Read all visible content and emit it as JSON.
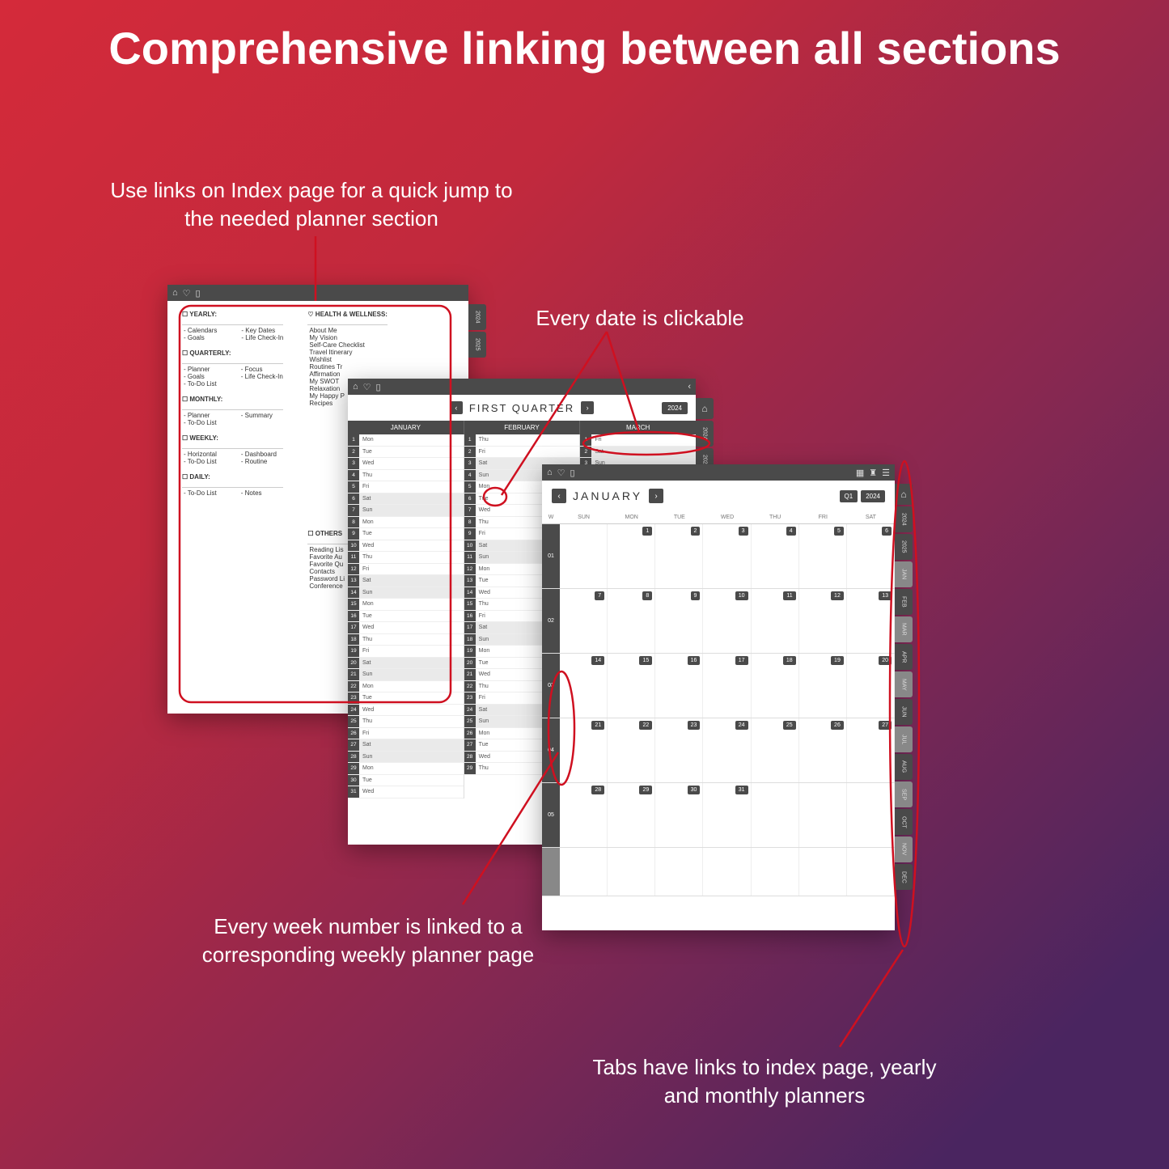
{
  "title": "Comprehensive linking between all sections",
  "callouts": {
    "c1": "Use links on Index page for a quick jump to the needed planner section",
    "c2": "Every date is clickable",
    "c3": "Every week number is linked to a corresponding weekly planner page",
    "c4": "Tabs have links to index page, yearly and monthly planners"
  },
  "index": {
    "sections": [
      {
        "h": "☐ YEARLY:",
        "items": [
          "- Calendars",
          "- Goals"
        ],
        "items2": [
          "- Key Dates",
          "- Life Check-In"
        ]
      },
      {
        "h": "☐ QUARTERLY:",
        "items": [
          "- Planner",
          "- Goals",
          "- To-Do List"
        ],
        "items2": [
          "- Focus",
          "- Life Check-In"
        ]
      },
      {
        "h": "☐ MONTHLY:",
        "items": [
          "- Planner",
          "- To-Do List"
        ],
        "items2": [
          "- Summary"
        ]
      },
      {
        "h": "☐ WEEKLY:",
        "items": [
          "- Horizontal",
          "- To-Do List"
        ],
        "items2": [
          "- Dashboard",
          "- Routine"
        ]
      },
      {
        "h": "☐ DAILY:",
        "items": [
          "- To-Do List"
        ],
        "items2": [
          "- Notes"
        ]
      }
    ],
    "health_h": "♡ HEALTH & WELLNESS:",
    "health": [
      "About Me",
      "My Vision",
      "Self-Care Checklist",
      "Travel Itinerary",
      "Wishlist",
      "Routines Tr",
      "Affirmation",
      "My SWOT",
      "Relaxation",
      "My Happy P",
      "Recipes"
    ],
    "others_h": "☐ OTHERS",
    "others": [
      "Reading Lis",
      "Favorite Au",
      "Favorite Qu",
      "Contacts",
      "Password Li",
      "Conference"
    ]
  },
  "quarter": {
    "title": "FIRST QUARTER",
    "year": "2024",
    "months": [
      "JANUARY",
      "FEBRUARY",
      "MARCH"
    ],
    "days": [
      "Mon",
      "Tue",
      "Wed",
      "Thu",
      "Fri",
      "Sat",
      "Sun",
      "Mon",
      "Tue",
      "Wed",
      "Thu",
      "Fri",
      "Sat",
      "Sun",
      "Mon",
      "Tue",
      "Wed",
      "Thu",
      "Fri",
      "Sat",
      "Sun",
      "Mon",
      "Tue",
      "Wed",
      "Thu",
      "Fri",
      "Sat",
      "Sun",
      "Mon",
      "Tue",
      "Wed"
    ],
    "col2days": [
      "Thu",
      "Fri",
      "Sat",
      "Sun",
      "Mon",
      "Tue",
      "Wed",
      "Thu",
      "Fri",
      "Sat",
      "Sun",
      "Mon",
      "Tue",
      "Wed",
      "Thu",
      "Fri",
      "Sat",
      "Sun",
      "Mon",
      "Tue",
      "Wed",
      "Thu",
      "Fri",
      "Sat",
      "Sun",
      "Mon",
      "Tue",
      "Wed",
      "Thu"
    ],
    "col3days": [
      "Fri",
      "Sat",
      "Sun",
      "Mon"
    ]
  },
  "month": {
    "title": "JANUARY",
    "q": "Q1",
    "y": "2024",
    "dow": [
      "W",
      "SUN",
      "MON",
      "TUE",
      "WED",
      "THU",
      "FRI",
      "SAT"
    ],
    "weeks": [
      {
        "w": "01",
        "d": [
          "",
          "1",
          "2",
          "3",
          "4",
          "5",
          "6"
        ]
      },
      {
        "w": "02",
        "d": [
          "7",
          "8",
          "9",
          "10",
          "11",
          "12",
          "13"
        ]
      },
      {
        "w": "03",
        "d": [
          "14",
          "15",
          "16",
          "17",
          "18",
          "19",
          "20"
        ]
      },
      {
        "w": "04",
        "d": [
          "21",
          "22",
          "23",
          "24",
          "25",
          "26",
          "27"
        ]
      },
      {
        "w": "05",
        "d": [
          "28",
          "29",
          "30",
          "31",
          "",
          "",
          ""
        ]
      }
    ]
  },
  "sidetabs1": [
    "2024",
    "2025"
  ],
  "sidetabs2": [
    "2024",
    "2025"
  ],
  "sidetabs3": [
    "2024",
    "2025",
    "JAN",
    "FEB",
    "MAR",
    "APR",
    "MAY",
    "JUN",
    "JUL",
    "AUG",
    "SEP",
    "OCT",
    "NOV",
    "DEC"
  ],
  "colors": {
    "red": "#cf1020",
    "dark": "#4a4a4a"
  }
}
